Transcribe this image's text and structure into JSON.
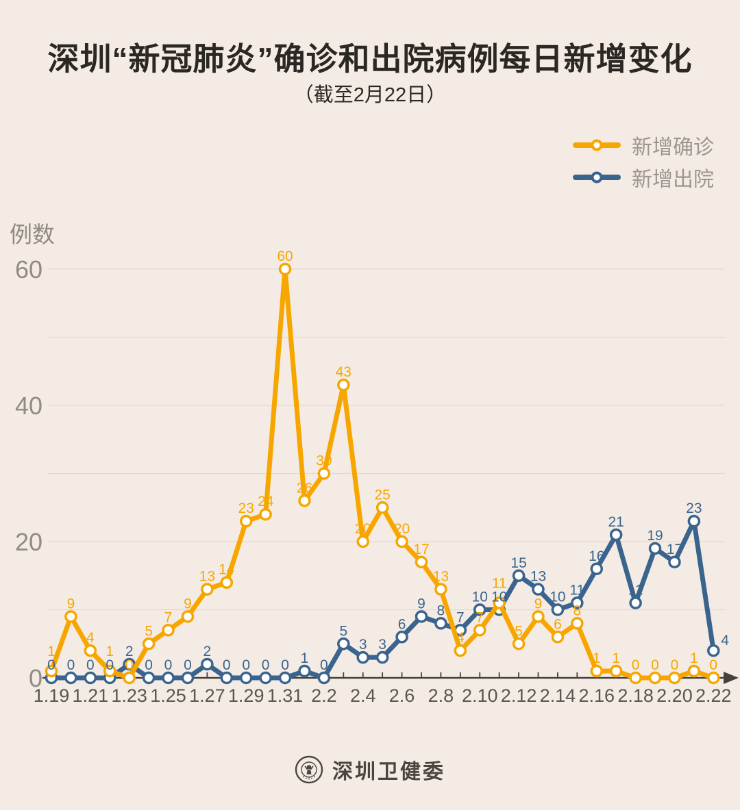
{
  "title": "深圳“新冠肺炎”确诊和出院病例每日新增变化",
  "subtitle": "（截至2月22日）",
  "y_axis_title": "例数",
  "legend": [
    {
      "label": "新增确诊",
      "color": "#f7a600"
    },
    {
      "label": "新增出院",
      "color": "#3a648e"
    }
  ],
  "footer": {
    "brand": "深圳卫健委"
  },
  "colors": {
    "background": "#f4ece4",
    "confirmed": "#f7a600",
    "discharged": "#3a648e",
    "grid_line": "#e2dad1",
    "axis_line": "#45403a",
    "y_tick_text": "#918b81",
    "x_tick_text": "#5a554e",
    "legend_text": "#9c9690",
    "title_text": "#2b2723",
    "footer_text": "#4b453f"
  },
  "chart_data": {
    "type": "line",
    "title": "深圳“新冠肺炎”确诊和出院病例每日新增变化（截至2月22日）",
    "xlabel": "",
    "ylabel": "例数",
    "ylim": [
      0,
      60
    ],
    "yticks": [
      0,
      20,
      40,
      60
    ],
    "minor_grid_step": 10,
    "grid": true,
    "legend_position": "top-right",
    "categories": [
      "1.19",
      "1.20",
      "1.21",
      "1.22",
      "1.23",
      "1.24",
      "1.25",
      "1.26",
      "1.27",
      "1.28",
      "1.29",
      "1.30",
      "1.31",
      "2.1",
      "2.2",
      "2.3",
      "2.4",
      "2.5",
      "2.6",
      "2.7",
      "2.8",
      "2.9",
      "2.10",
      "2.11",
      "2.12",
      "2.13",
      "2.14",
      "2.15",
      "2.16",
      "2.17",
      "2.18",
      "2.19",
      "2.20",
      "2.21",
      "2.22"
    ],
    "x_tick_labels": [
      "1.19",
      "1.21",
      "1.23",
      "1.25",
      "1.27",
      "1.29",
      "1.31",
      "2.2",
      "2.4",
      "2.6",
      "2.8",
      "2.10",
      "2.12",
      "2.14",
      "2.16",
      "2.18",
      "2.20",
      "2.22"
    ],
    "series": [
      {
        "name": "新增确诊",
        "color": "#f7a600",
        "values": [
          1,
          9,
          4,
          1,
          0,
          5,
          7,
          9,
          13,
          14,
          23,
          24,
          60,
          26,
          30,
          43,
          20,
          25,
          20,
          17,
          13,
          4,
          7,
          11,
          5,
          9,
          6,
          8,
          1,
          1,
          0,
          0,
          0,
          1,
          0
        ]
      },
      {
        "name": "新增出院",
        "color": "#3a648e",
        "values": [
          0,
          0,
          0,
          0,
          2,
          0,
          0,
          0,
          2,
          0,
          0,
          0,
          0,
          1,
          0,
          5,
          3,
          3,
          6,
          9,
          8,
          7,
          10,
          10,
          15,
          13,
          10,
          11,
          16,
          21,
          11,
          19,
          17,
          23,
          4
        ]
      }
    ]
  }
}
